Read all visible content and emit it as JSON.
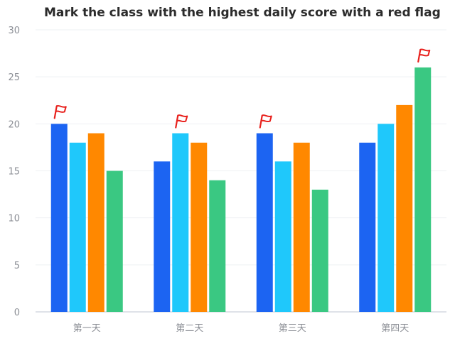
{
  "chart_data": {
    "type": "bar",
    "title": "Mark the class with the highest daily score with a red flag",
    "categories": [
      "第一天",
      "第二天",
      "第三天",
      "第四天"
    ],
    "series": [
      {
        "values": [
          20,
          16,
          19,
          18
        ],
        "color": "#1c64f2"
      },
      {
        "values": [
          18,
          19,
          16,
          20
        ],
        "color": "#1fc8fb"
      },
      {
        "values": [
          19,
          18,
          18,
          22
        ],
        "color": "#ff8800"
      },
      {
        "values": [
          15,
          14,
          13,
          26
        ],
        "color": "#3ac882"
      }
    ],
    "ylim": [
      0,
      30
    ],
    "yticks": [
      0,
      5,
      10,
      15,
      20,
      25,
      30
    ],
    "grid": true,
    "annotations": {
      "flag_icon": "red-flag-icon",
      "flag_color": "#e8201c",
      "rule": "highest bar in each category"
    }
  }
}
